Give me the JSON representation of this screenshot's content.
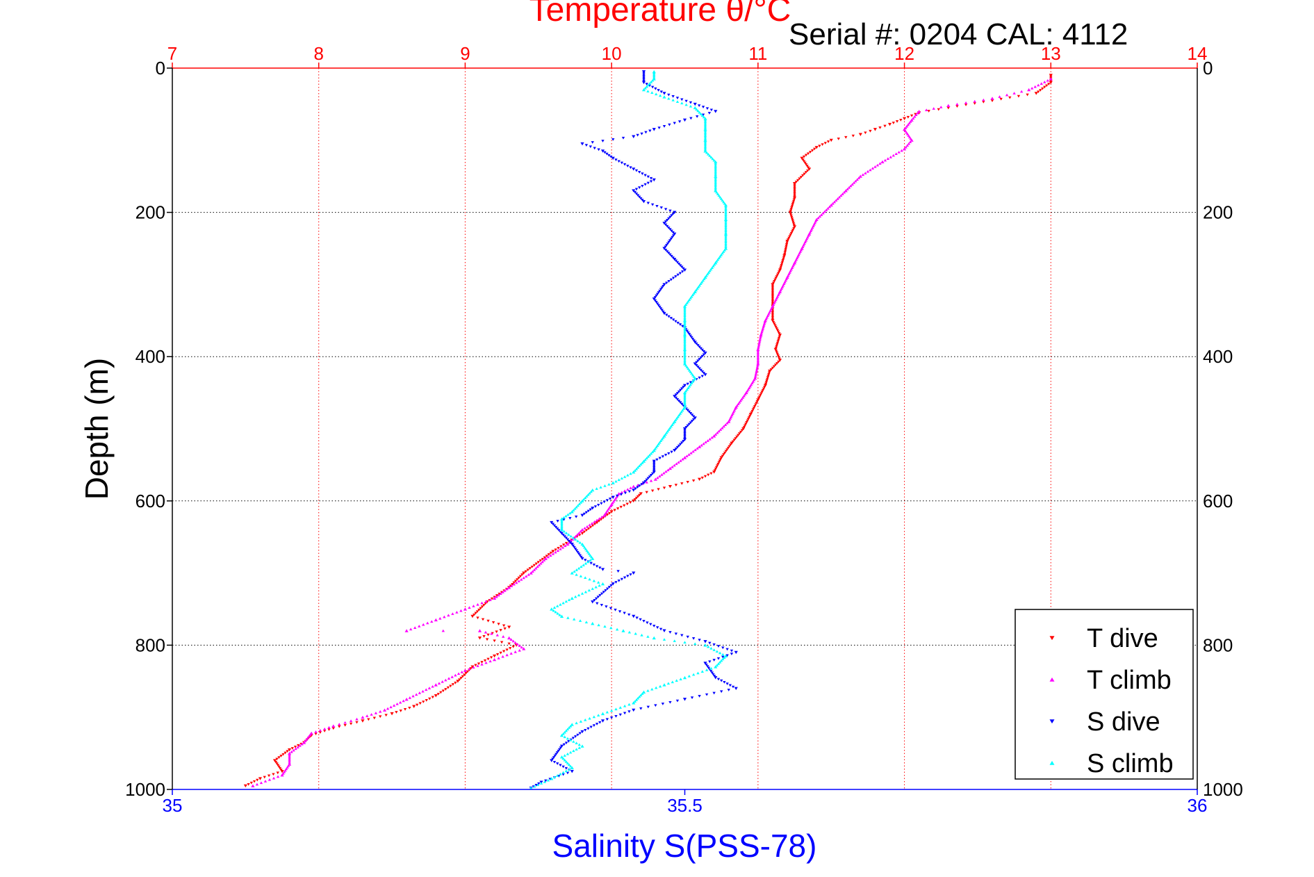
{
  "chart_data": {
    "type": "scatter",
    "title": "Temperature θ/°C",
    "subtitle": "Serial #: 0204  CAL: 4112",
    "xlabel": "Salinity S(PSS-78)",
    "ylabel": "Depth (m)",
    "x_bottom": {
      "label": "Salinity S(PSS-78)",
      "lim": [
        35,
        36
      ],
      "ticks": [
        35,
        35.5,
        36
      ],
      "tick_labels": [
        "35",
        "35.5",
        "36"
      ],
      "color": "#0000ff"
    },
    "x_top": {
      "label": "Temperature θ/°C",
      "lim": [
        7,
        14
      ],
      "ticks": [
        7,
        8,
        9,
        10,
        11,
        12,
        13,
        14
      ],
      "tick_labels": [
        "7",
        "8",
        "9",
        "10",
        "11",
        "12",
        "13",
        "14"
      ],
      "color": "#ff0000"
    },
    "y": {
      "lim": [
        0,
        1000
      ],
      "reversed": true,
      "ticks": [
        0,
        200,
        400,
        600,
        800,
        1000
      ],
      "tick_labels": [
        "0",
        "200",
        "400",
        "600",
        "800",
        "1000"
      ]
    },
    "grid": true,
    "legend_position": "bottom-right",
    "series": [
      {
        "name": "T dive",
        "axis": "top",
        "color": "#ff0000",
        "marker": "triangle-down",
        "points": [
          [
            13.0,
            10
          ],
          [
            13.0,
            20
          ],
          [
            12.9,
            35
          ],
          [
            12.6,
            45
          ],
          [
            12.3,
            55
          ],
          [
            12.1,
            62
          ],
          [
            12.0,
            70
          ],
          [
            11.9,
            78
          ],
          [
            11.8,
            85
          ],
          [
            11.7,
            92
          ],
          [
            11.5,
            100
          ],
          [
            11.4,
            110
          ],
          [
            11.3,
            125
          ],
          [
            11.35,
            140
          ],
          [
            11.25,
            160
          ],
          [
            11.25,
            180
          ],
          [
            11.22,
            200
          ],
          [
            11.25,
            220
          ],
          [
            11.2,
            240
          ],
          [
            11.18,
            260
          ],
          [
            11.15,
            280
          ],
          [
            11.1,
            300
          ],
          [
            11.1,
            330
          ],
          [
            11.1,
            350
          ],
          [
            11.15,
            370
          ],
          [
            11.12,
            390
          ],
          [
            11.15,
            405
          ],
          [
            11.08,
            420
          ],
          [
            11.05,
            440
          ],
          [
            11.0,
            460
          ],
          [
            10.95,
            480
          ],
          [
            10.9,
            500
          ],
          [
            10.82,
            520
          ],
          [
            10.75,
            540
          ],
          [
            10.7,
            560
          ],
          [
            10.6,
            570
          ],
          [
            10.4,
            580
          ],
          [
            10.2,
            590
          ],
          [
            10.15,
            600
          ],
          [
            10.0,
            615
          ],
          [
            9.9,
            630
          ],
          [
            9.8,
            645
          ],
          [
            9.6,
            670
          ],
          [
            9.4,
            700
          ],
          [
            9.3,
            720
          ],
          [
            9.15,
            740
          ],
          [
            9.05,
            760
          ],
          [
            9.3,
            775
          ],
          [
            9.1,
            790
          ],
          [
            9.35,
            800
          ],
          [
            9.2,
            815
          ],
          [
            9.05,
            830
          ],
          [
            8.95,
            850
          ],
          [
            8.8,
            870
          ],
          [
            8.65,
            885
          ],
          [
            8.5,
            895
          ],
          [
            8.3,
            905
          ],
          [
            8.1,
            915
          ],
          [
            7.95,
            925
          ],
          [
            7.9,
            935
          ],
          [
            7.8,
            945
          ],
          [
            7.7,
            960
          ],
          [
            7.75,
            975
          ],
          [
            7.6,
            985
          ],
          [
            7.5,
            995
          ]
        ]
      },
      {
        "name": "T climb",
        "axis": "top",
        "color": "#ff00ff",
        "marker": "triangle-up",
        "points": [
          [
            13.0,
            15
          ],
          [
            12.85,
            30
          ],
          [
            12.6,
            42
          ],
          [
            12.3,
            52
          ],
          [
            12.1,
            60
          ],
          [
            12.05,
            72
          ],
          [
            12.0,
            85
          ],
          [
            12.05,
            100
          ],
          [
            12.0,
            112
          ],
          [
            11.85,
            130
          ],
          [
            11.7,
            150
          ],
          [
            11.6,
            170
          ],
          [
            11.5,
            190
          ],
          [
            11.4,
            210
          ],
          [
            11.35,
            230
          ],
          [
            11.3,
            250
          ],
          [
            11.25,
            270
          ],
          [
            11.2,
            290
          ],
          [
            11.15,
            310
          ],
          [
            11.1,
            330
          ],
          [
            11.05,
            350
          ],
          [
            11.02,
            370
          ],
          [
            11.0,
            390
          ],
          [
            11.0,
            410
          ],
          [
            10.98,
            430
          ],
          [
            10.92,
            450
          ],
          [
            10.85,
            470
          ],
          [
            10.8,
            490
          ],
          [
            10.7,
            510
          ],
          [
            10.6,
            525
          ],
          [
            10.5,
            540
          ],
          [
            10.4,
            555
          ],
          [
            10.3,
            570
          ],
          [
            10.15,
            580
          ],
          [
            10.05,
            590
          ],
          [
            10.0,
            605
          ],
          [
            9.95,
            620
          ],
          [
            9.8,
            640
          ],
          [
            9.7,
            660
          ],
          [
            9.55,
            680
          ],
          [
            9.45,
            700
          ],
          [
            9.3,
            720
          ],
          [
            9.2,
            735
          ],
          [
            9.0,
            750
          ],
          [
            8.8,
            765
          ],
          [
            8.6,
            780
          ],
          [
            9.1,
            780
          ],
          [
            9.3,
            790
          ],
          [
            9.4,
            805
          ],
          [
            9.2,
            820
          ],
          [
            9.0,
            835
          ],
          [
            8.8,
            855
          ],
          [
            8.6,
            875
          ],
          [
            8.45,
            890
          ],
          [
            8.3,
            900
          ],
          [
            8.1,
            912
          ],
          [
            7.95,
            922
          ],
          [
            7.9,
            935
          ],
          [
            7.8,
            950
          ],
          [
            7.8,
            965
          ],
          [
            7.75,
            980
          ],
          [
            7.55,
            995
          ]
        ]
      },
      {
        "name": "S dive",
        "axis": "bottom",
        "color": "#0000ff",
        "marker": "triangle-down",
        "points": [
          [
            35.46,
            5
          ],
          [
            35.46,
            20
          ],
          [
            35.48,
            35
          ],
          [
            35.51,
            50
          ],
          [
            35.53,
            60
          ],
          [
            35.5,
            72
          ],
          [
            35.47,
            85
          ],
          [
            35.45,
            95
          ],
          [
            35.4,
            105
          ],
          [
            35.42,
            115
          ],
          [
            35.43,
            125
          ],
          [
            35.45,
            140
          ],
          [
            35.47,
            155
          ],
          [
            35.45,
            170
          ],
          [
            35.46,
            185
          ],
          [
            35.49,
            200
          ],
          [
            35.48,
            215
          ],
          [
            35.49,
            230
          ],
          [
            35.48,
            250
          ],
          [
            35.49,
            265
          ],
          [
            35.5,
            280
          ],
          [
            35.48,
            300
          ],
          [
            35.47,
            320
          ],
          [
            35.48,
            340
          ],
          [
            35.5,
            360
          ],
          [
            35.51,
            380
          ],
          [
            35.52,
            395
          ],
          [
            35.51,
            410
          ],
          [
            35.52,
            425
          ],
          [
            35.5,
            440
          ],
          [
            35.49,
            455
          ],
          [
            35.5,
            470
          ],
          [
            35.51,
            485
          ],
          [
            35.5,
            500
          ],
          [
            35.5,
            515
          ],
          [
            35.49,
            530
          ],
          [
            35.47,
            545
          ],
          [
            35.47,
            560
          ],
          [
            35.46,
            575
          ],
          [
            35.45,
            585
          ],
          [
            35.43,
            595
          ],
          [
            35.41,
            610
          ],
          [
            35.4,
            620
          ],
          [
            35.37,
            630
          ],
          [
            35.38,
            645
          ],
          [
            35.39,
            660
          ],
          [
            35.4,
            680
          ],
          [
            35.42,
            695
          ],
          [
            35.45,
            700
          ],
          [
            35.43,
            715
          ],
          [
            35.41,
            740
          ],
          [
            35.45,
            760
          ],
          [
            35.48,
            780
          ],
          [
            35.52,
            795
          ],
          [
            35.55,
            810
          ],
          [
            35.52,
            825
          ],
          [
            35.53,
            845
          ],
          [
            35.55,
            860
          ],
          [
            35.5,
            875
          ],
          [
            35.45,
            890
          ],
          [
            35.42,
            905
          ],
          [
            35.4,
            920
          ],
          [
            35.38,
            940
          ],
          [
            35.37,
            960
          ],
          [
            35.39,
            975
          ],
          [
            35.36,
            990
          ],
          [
            35.35,
            998
          ]
        ]
      },
      {
        "name": "S climb",
        "axis": "bottom",
        "color": "#00ffff",
        "marker": "triangle-up",
        "points": [
          [
            35.47,
            5
          ],
          [
            35.47,
            15
          ],
          [
            35.46,
            30
          ],
          [
            35.48,
            40
          ],
          [
            35.51,
            55
          ],
          [
            35.52,
            70
          ],
          [
            35.52,
            85
          ],
          [
            35.52,
            100
          ],
          [
            35.52,
            115
          ],
          [
            35.53,
            130
          ],
          [
            35.53,
            150
          ],
          [
            35.53,
            170
          ],
          [
            35.54,
            190
          ],
          [
            35.54,
            210
          ],
          [
            35.54,
            230
          ],
          [
            35.54,
            250
          ],
          [
            35.53,
            270
          ],
          [
            35.52,
            290
          ],
          [
            35.51,
            310
          ],
          [
            35.5,
            330
          ],
          [
            35.5,
            350
          ],
          [
            35.5,
            370
          ],
          [
            35.5,
            390
          ],
          [
            35.5,
            410
          ],
          [
            35.51,
            430
          ],
          [
            35.5,
            450
          ],
          [
            35.5,
            470
          ],
          [
            35.49,
            490
          ],
          [
            35.48,
            510
          ],
          [
            35.47,
            530
          ],
          [
            35.46,
            545
          ],
          [
            35.45,
            560
          ],
          [
            35.43,
            575
          ],
          [
            35.41,
            585
          ],
          [
            35.4,
            600
          ],
          [
            35.39,
            615
          ],
          [
            35.38,
            625
          ],
          [
            35.38,
            640
          ],
          [
            35.4,
            660
          ],
          [
            35.41,
            680
          ],
          [
            35.39,
            700
          ],
          [
            35.42,
            715
          ],
          [
            35.39,
            735
          ],
          [
            35.37,
            750
          ],
          [
            35.38,
            760
          ],
          [
            35.41,
            770
          ],
          [
            35.44,
            780
          ],
          [
            35.47,
            790
          ],
          [
            35.52,
            800
          ],
          [
            35.54,
            815
          ],
          [
            35.53,
            830
          ],
          [
            35.5,
            845
          ],
          [
            35.48,
            855
          ],
          [
            35.46,
            865
          ],
          [
            35.45,
            880
          ],
          [
            35.42,
            895
          ],
          [
            35.39,
            910
          ],
          [
            35.38,
            925
          ],
          [
            35.4,
            940
          ],
          [
            35.38,
            955
          ],
          [
            35.39,
            970
          ],
          [
            35.37,
            985
          ],
          [
            35.35,
            998
          ]
        ]
      }
    ]
  }
}
